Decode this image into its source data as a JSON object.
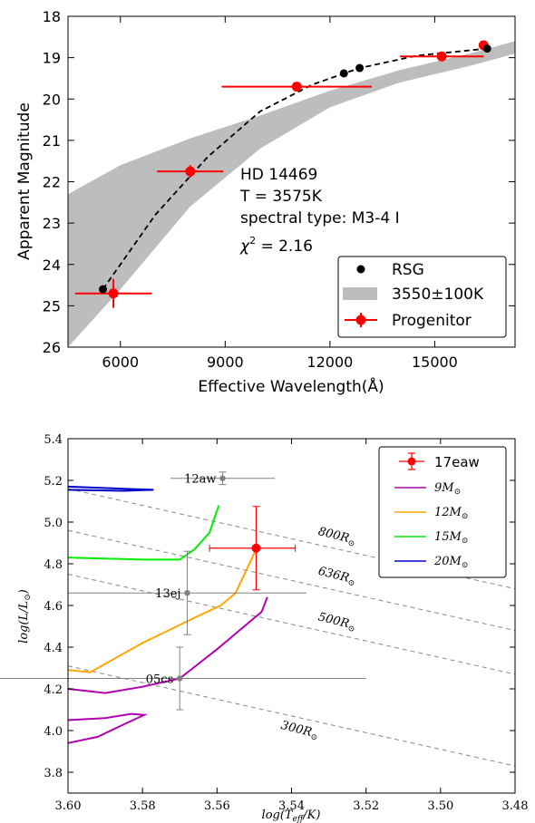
{
  "chart_data": [
    {
      "type": "scatter",
      "xlabel": "Effective Wavelength(Å)",
      "ylabel": "Apparent Magnitude",
      "xlim": [
        4500,
        17300
      ],
      "ylim": [
        26,
        18
      ],
      "inverted_y": true,
      "xticks": [
        "6000",
        "9000",
        "12000",
        "15000"
      ],
      "yticks": [
        "18",
        "19",
        "20",
        "21",
        "22",
        "23",
        "24",
        "25",
        "26"
      ],
      "annotation_lines": [
        "HD 14469",
        "T = 3575K",
        "spectral type: M3-4 I"
      ],
      "chi2_label": "χ",
      "chi2_value": " = 2.16",
      "legend": [
        "RSG",
        "3550±100K",
        "Progenitor"
      ],
      "legend_position": "lower-right",
      "series": [
        {
          "name": "RSG",
          "color": "#000000",
          "x": [
            5500,
            12400,
            12850,
            16500
          ],
          "y": [
            24.6,
            19.38,
            19.25,
            18.78
          ],
          "curve": "dashed"
        },
        {
          "name": "3550±100K",
          "color": "#bdbdbd",
          "band_x": [
            4500,
            6000,
            8000,
            10000,
            12000,
            14000,
            16000,
            17300
          ],
          "band_lower": [
            22.3,
            21.6,
            20.95,
            20.4,
            19.8,
            19.3,
            18.9,
            18.6
          ],
          "band_upper": [
            26,
            24.6,
            22.6,
            21.2,
            20.2,
            19.6,
            19.2,
            18.9
          ]
        },
        {
          "name": "Progenitor",
          "color": "#ff0000",
          "points": [
            {
              "x": 5800,
              "y": 24.7,
              "xerr": 1100,
              "yerr": 0.35
            },
            {
              "x": 8000,
              "y": 21.75,
              "xerr": 950,
              "yerr": 0.15
            },
            {
              "x": 11050,
              "y": 19.7,
              "xerr": 2150,
              "yerr": 0
            },
            {
              "x": 15200,
              "y": 18.97,
              "xerr": 1200,
              "yerr": 0
            },
            {
              "x": 16400,
              "y": 18.7,
              "xerr": 0,
              "yerr": 0
            }
          ]
        }
      ]
    },
    {
      "type": "line",
      "xlabel": "log(T_eff/K)",
      "ylabel": "log(L/L_⊙)",
      "xlim": [
        3.6,
        3.48
      ],
      "ylim": [
        3.7,
        5.4
      ],
      "xticks": [
        "3.60",
        "3.58",
        "3.56",
        "3.54",
        "3.52",
        "3.50",
        "3.48"
      ],
      "yticks": [
        "3.8",
        "4.0",
        "4.2",
        "4.4",
        "4.6",
        "4.8",
        "5.0",
        "5.2",
        "5.4"
      ],
      "legend": [
        "17eaw",
        "9M",
        "12M",
        "15M",
        "20M"
      ],
      "legend_position": "upper-right",
      "sun_symbol": "⊙",
      "series": [
        {
          "name": "17eaw",
          "color": "#ff0000",
          "points": [
            {
              "x": 3.5495,
              "y": 4.875,
              "xerr_low": 0.0125,
              "xerr_high": 0.0105,
              "yerr": 0.2
            }
          ]
        },
        {
          "name": "9M",
          "color": "#b000b0",
          "x": [
            3.6,
            3.59,
            3.58,
            3.57,
            3.56,
            3.548,
            3.5465
          ],
          "y": [
            4.2,
            4.18,
            4.21,
            4.25,
            4.39,
            4.57,
            4.64
          ]
        },
        {
          "name": "9M_loop",
          "color": "#b000b0",
          "x": [
            3.6,
            3.592,
            3.585,
            3.5795,
            3.583,
            3.59,
            3.6
          ],
          "y": [
            3.94,
            3.97,
            4.03,
            4.075,
            4.08,
            4.06,
            4.05
          ]
        },
        {
          "name": "12M",
          "color": "#ffa500",
          "x": [
            3.6,
            3.594,
            3.58,
            3.565,
            3.559,
            3.555,
            3.5495
          ],
          "y": [
            4.29,
            4.28,
            4.42,
            4.55,
            4.6,
            4.66,
            4.87
          ]
        },
        {
          "name": "15M",
          "color": "#00ee00",
          "x": [
            3.6,
            3.58,
            3.57,
            3.566,
            3.562,
            3.5605,
            3.5595
          ],
          "y": [
            4.83,
            4.82,
            4.82,
            4.87,
            4.95,
            5.03,
            5.08
          ]
        },
        {
          "name": "20M",
          "color": "#0000cc",
          "x": [
            3.6,
            3.585,
            3.577,
            3.585,
            3.6
          ],
          "y": [
            5.17,
            5.16,
            5.155,
            5.15,
            5.155
          ]
        },
        {
          "name": "comparison",
          "color": "#808080",
          "points": [
            {
              "label": "12aw",
              "x": 3.5585,
              "y": 5.21,
              "xerr": 0.014,
              "yerr": 0.03
            },
            {
              "label": "13ej",
              "x": 3.568,
              "y": 4.66,
              "xerr": 0.032,
              "yerr": 0.2
            },
            {
              "label": "05cs",
              "x": 3.57,
              "y": 4.25,
              "xerr": 0.05,
              "yerr": 0.15
            }
          ]
        }
      ],
      "radius_lines": [
        {
          "label": "800R",
          "y_at_3_60": 5.16,
          "y_at_3_48": 4.68
        },
        {
          "label": "636R",
          "y_at_3_60": 4.96,
          "y_at_3_48": 4.48
        },
        {
          "label": "500R",
          "y_at_3_60": 4.75,
          "y_at_3_48": 4.27
        },
        {
          "label": "300R",
          "y_at_3_60": 4.31,
          "y_at_3_48": 3.83
        }
      ]
    }
  ]
}
